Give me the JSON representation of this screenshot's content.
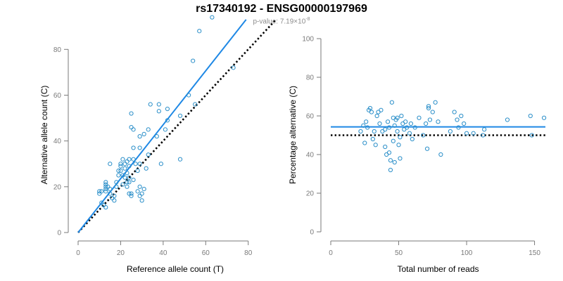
{
  "header": {
    "title": "rs17340192 - ENSG00000197969",
    "pvalue_prefix": "p-value: 7.19×10",
    "pvalue_exp": "-8"
  },
  "colors": {
    "points": "#2b8fc9",
    "fit": "#1e88e5",
    "reference": "#000000",
    "axis": "#7a7a7a"
  },
  "chart_data": [
    {
      "type": "scatter",
      "xlabel": "Reference allele count (T)",
      "ylabel": "Alternative allele count (C)",
      "xlim": [
        0,
        92
      ],
      "ylim": [
        0,
        85
      ],
      "xticks": [
        0,
        20,
        40,
        60,
        80
      ],
      "yticks": [
        0,
        20,
        40,
        60,
        80
      ],
      "grid": false,
      "fit_line": {
        "x": [
          0,
          79
        ],
        "y": [
          0,
          93
        ]
      },
      "reference_line": {
        "x": [
          0,
          93
        ],
        "y": [
          0,
          93
        ]
      },
      "points": [
        [
          10,
          17
        ],
        [
          10,
          18
        ],
        [
          11,
          18
        ],
        [
          11,
          13
        ],
        [
          12,
          12
        ],
        [
          13,
          11
        ],
        [
          13,
          18
        ],
        [
          13,
          19
        ],
        [
          13,
          20
        ],
        [
          13,
          21
        ],
        [
          13,
          22
        ],
        [
          14,
          20
        ],
        [
          15,
          17
        ],
        [
          15,
          19
        ],
        [
          15,
          30
        ],
        [
          16,
          15
        ],
        [
          17,
          14
        ],
        [
          17,
          16
        ],
        [
          18,
          20
        ],
        [
          18,
          22
        ],
        [
          19,
          25
        ],
        [
          19,
          27
        ],
        [
          20,
          27
        ],
        [
          20,
          29
        ],
        [
          20,
          30
        ],
        [
          21,
          21
        ],
        [
          21,
          25
        ],
        [
          21,
          32
        ],
        [
          22,
          24
        ],
        [
          22,
          28
        ],
        [
          22,
          30
        ],
        [
          23,
          20
        ],
        [
          23,
          22
        ],
        [
          23,
          26
        ],
        [
          23,
          31
        ],
        [
          24,
          17
        ],
        [
          24,
          22
        ],
        [
          24,
          24
        ],
        [
          24,
          29
        ],
        [
          24,
          32
        ],
        [
          25,
          16
        ],
        [
          25,
          17
        ],
        [
          25,
          46
        ],
        [
          25,
          52
        ],
        [
          26,
          23
        ],
        [
          26,
          32
        ],
        [
          26,
          37
        ],
        [
          26,
          45
        ],
        [
          27,
          30
        ],
        [
          28,
          18
        ],
        [
          28,
          27
        ],
        [
          29,
          16
        ],
        [
          29,
          20
        ],
        [
          29,
          30
        ],
        [
          29,
          37
        ],
        [
          29,
          42
        ],
        [
          30,
          14
        ],
        [
          30,
          17
        ],
        [
          31,
          19
        ],
        [
          31,
          43
        ],
        [
          32,
          28
        ],
        [
          33,
          34
        ],
        [
          33,
          45
        ],
        [
          34,
          56
        ],
        [
          37,
          42
        ],
        [
          38,
          56
        ],
        [
          38,
          53
        ],
        [
          39,
          30
        ],
        [
          41,
          45
        ],
        [
          42,
          49
        ],
        [
          42,
          54
        ],
        [
          48,
          32
        ],
        [
          48,
          51
        ],
        [
          52,
          60
        ],
        [
          54,
          75
        ],
        [
          55,
          56
        ],
        [
          57,
          88
        ],
        [
          63,
          94
        ],
        [
          73,
          72
        ]
      ]
    },
    {
      "type": "scatter",
      "xlabel": "Total number of reads",
      "ylabel": "Percentage alternative (C)",
      "xlim": [
        0,
        158
      ],
      "ylim": [
        0,
        100
      ],
      "xticks": [
        0,
        50,
        100,
        150
      ],
      "yticks": [
        0,
        20,
        40,
        60,
        80,
        100
      ],
      "grid": false,
      "fit_line": {
        "x": [
          0,
          158
        ],
        "y": [
          54.3,
          54.3
        ]
      },
      "reference_line": {
        "x": [
          0,
          158
        ],
        "y": [
          50,
          50
        ]
      },
      "points": [
        [
          22,
          52
        ],
        [
          24,
          55
        ],
        [
          25,
          46
        ],
        [
          26,
          57
        ],
        [
          27,
          54
        ],
        [
          28,
          63
        ],
        [
          29,
          64
        ],
        [
          30,
          62
        ],
        [
          31,
          48
        ],
        [
          32,
          52
        ],
        [
          33,
          45
        ],
        [
          34,
          60
        ],
        [
          35,
          62
        ],
        [
          36,
          56
        ],
        [
          37,
          63
        ],
        [
          38,
          52
        ],
        [
          40,
          53
        ],
        [
          40,
          44
        ],
        [
          41,
          40
        ],
        [
          42,
          57
        ],
        [
          43,
          41
        ],
        [
          43,
          54
        ],
        [
          44,
          37
        ],
        [
          44,
          32
        ],
        [
          45,
          67
        ],
        [
          46,
          59
        ],
        [
          46,
          47
        ],
        [
          47,
          55
        ],
        [
          47,
          36
        ],
        [
          48,
          58
        ],
        [
          49,
          52
        ],
        [
          49,
          59
        ],
        [
          50,
          45
        ],
        [
          51,
          38
        ],
        [
          51,
          49
        ],
        [
          52,
          60
        ],
        [
          53,
          56
        ],
        [
          54,
          53
        ],
        [
          55,
          57
        ],
        [
          56,
          54
        ],
        [
          58,
          51
        ],
        [
          59,
          56
        ],
        [
          60,
          48
        ],
        [
          62,
          54
        ],
        [
          65,
          59
        ],
        [
          68,
          50
        ],
        [
          70,
          56
        ],
        [
          71,
          43
        ],
        [
          72,
          64
        ],
        [
          72,
          65
        ],
        [
          73,
          58
        ],
        [
          75,
          62
        ],
        [
          77,
          67
        ],
        [
          79,
          57
        ],
        [
          81,
          40
        ],
        [
          88,
          52
        ],
        [
          91,
          62
        ],
        [
          93,
          58
        ],
        [
          94,
          54
        ],
        [
          96,
          60
        ],
        [
          98,
          56
        ],
        [
          100,
          51
        ],
        [
          105,
          51
        ],
        [
          112,
          50
        ],
        [
          113,
          53
        ],
        [
          130,
          58
        ],
        [
          147,
          60
        ],
        [
          148,
          50
        ],
        [
          157,
          59
        ]
      ]
    }
  ]
}
